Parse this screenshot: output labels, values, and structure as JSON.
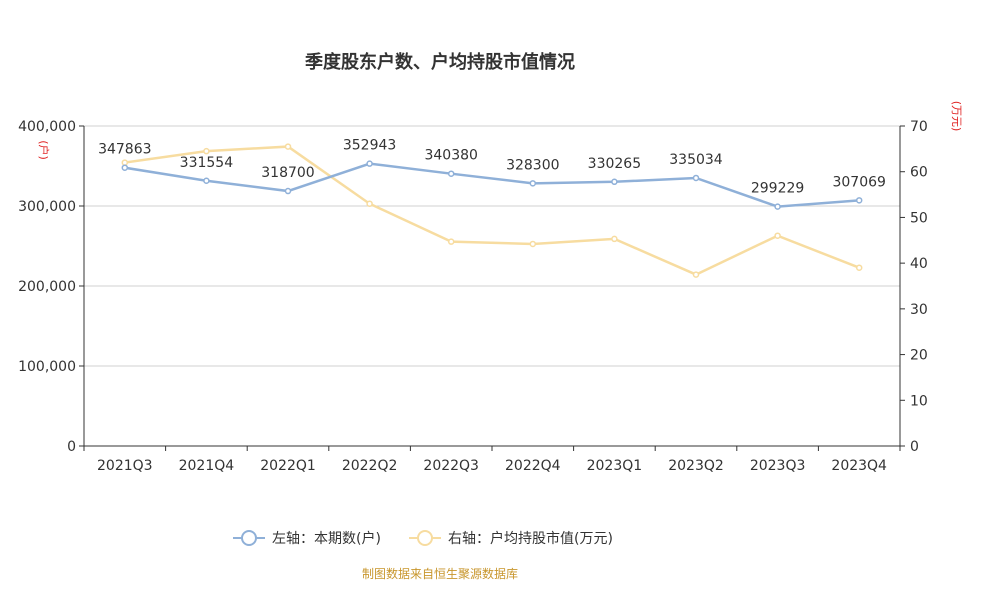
{
  "chart_data": {
    "type": "line",
    "title": "季度股东户数、户均持股市值情况",
    "categories": [
      "2021Q3",
      "2021Q4",
      "2022Q1",
      "2022Q2",
      "2022Q3",
      "2022Q4",
      "2023Q1",
      "2023Q2",
      "2023Q3",
      "2023Q4"
    ],
    "left_axis": {
      "unit": "(户)",
      "ylim": [
        0,
        400000
      ],
      "ticks": [
        "0",
        "100,000",
        "200,000",
        "300,000",
        "400,000"
      ]
    },
    "right_axis": {
      "unit": "(万元)",
      "ylim": [
        0,
        70
      ],
      "ticks": [
        "0",
        "10",
        "20",
        "30",
        "40",
        "50",
        "60",
        "70"
      ]
    },
    "series": [
      {
        "name": "左轴：本期数(户)",
        "axis": "left",
        "color": "#8fb0d8",
        "values": [
          347863,
          331554,
          318700,
          352943,
          340380,
          328300,
          330265,
          335034,
          299229,
          307069
        ],
        "labels": [
          "347863",
          "331554",
          "318700",
          "352943",
          "340380",
          "328300",
          "330265",
          "335034",
          "299229",
          "307069"
        ]
      },
      {
        "name": "右轴：户均持股市值(万元)",
        "axis": "right",
        "color": "#f7dca0",
        "values": [
          62.0,
          64.5,
          65.5,
          53.0,
          44.7,
          44.2,
          45.3,
          37.5,
          46.0,
          39.0
        ]
      }
    ],
    "grid": true,
    "legend": "bottom-center",
    "source": "制图数据来自恒生聚源数据库"
  }
}
